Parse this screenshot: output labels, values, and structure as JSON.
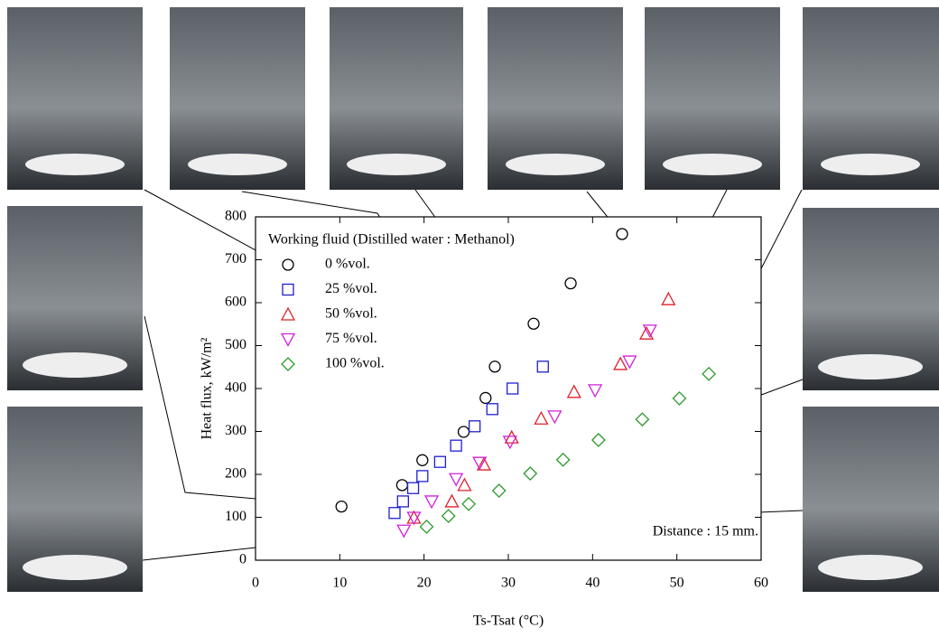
{
  "chart_data": {
    "type": "scatter",
    "x_label": "Ts-Tsat (°C)",
    "y_label": "Heat flux, kW/m²",
    "legend_title": "Working fluid (Distilled water : Methanol)",
    "annotation": "Distance : 15 mm.",
    "xlim": [
      0,
      60
    ],
    "xticks": [
      0,
      10,
      20,
      30,
      40,
      50,
      60
    ],
    "ylim": [
      0,
      800
    ],
    "yticks": [
      0,
      100,
      200,
      300,
      400,
      500,
      600,
      700,
      800
    ],
    "series": [
      {
        "name": "0 %vol.",
        "color": "#000000",
        "marker": "circle",
        "x": [
          10.2,
          17.4,
          19.8,
          24.7,
          27.3,
          28.4,
          33,
          37.4,
          43.5
        ],
        "values": [
          125,
          175,
          233,
          299,
          378,
          451,
          551,
          645,
          760
        ]
      },
      {
        "name": "25 %vol.",
        "color": "#1f1fd0",
        "marker": "square",
        "x": [
          16.5,
          17.5,
          18.7,
          19.8,
          21.9,
          23.8,
          26,
          28.1,
          30.5,
          34.1
        ],
        "values": [
          110,
          137,
          168,
          196,
          229,
          267,
          312,
          352,
          400,
          451
        ]
      },
      {
        "name": "50 %vol.",
        "color": "#e0202a",
        "marker": "triangle-up",
        "x": [
          18.8,
          23.3,
          24.8,
          27.1,
          30.4,
          33.9,
          37.8,
          43.3,
          46.4,
          49
        ],
        "values": [
          99,
          137,
          175,
          223,
          286,
          330,
          392,
          457,
          528,
          608
        ]
      },
      {
        "name": "75 %vol.",
        "color": "#d020d8",
        "marker": "triangle-down",
        "x": [
          17.6,
          18.8,
          20.9,
          23.8,
          26.6,
          30.2,
          35.5,
          40.3,
          44.4,
          46.8
        ],
        "values": [
          69,
          99,
          137,
          189,
          227,
          276,
          335,
          396,
          463,
          535
        ]
      },
      {
        "name": "100 %vol.",
        "color": "#2a9a2a",
        "marker": "diamond",
        "x": [
          20.3,
          22.9,
          25.3,
          28.9,
          32.6,
          36.5,
          40.7,
          45.9,
          50.3,
          53.8
        ],
        "values": [
          78,
          103,
          131,
          162,
          202,
          234,
          280,
          328,
          377,
          434
        ]
      }
    ]
  }
}
